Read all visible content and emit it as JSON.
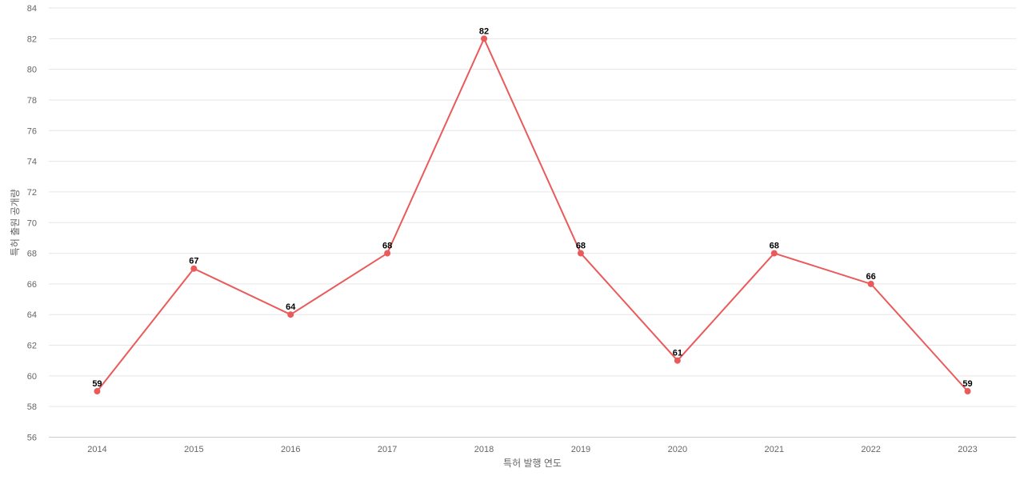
{
  "chart_data": {
    "type": "line",
    "title": "",
    "xlabel": "특허 발행 연도",
    "ylabel": "특허 출원 공개량",
    "categories": [
      "2014",
      "2015",
      "2016",
      "2017",
      "2018",
      "2019",
      "2020",
      "2021",
      "2022",
      "2023"
    ],
    "series": [
      {
        "values": [
          59,
          67,
          64,
          68,
          82,
          68,
          61,
          68,
          66,
          59
        ],
        "color": "#eb5a5a"
      }
    ],
    "ylim": [
      56,
      84
    ],
    "yticks": [
      56,
      58,
      60,
      62,
      64,
      66,
      68,
      70,
      72,
      74,
      76,
      78,
      80,
      82,
      84
    ],
    "grid": true,
    "legend": "none",
    "data_labels": true
  }
}
